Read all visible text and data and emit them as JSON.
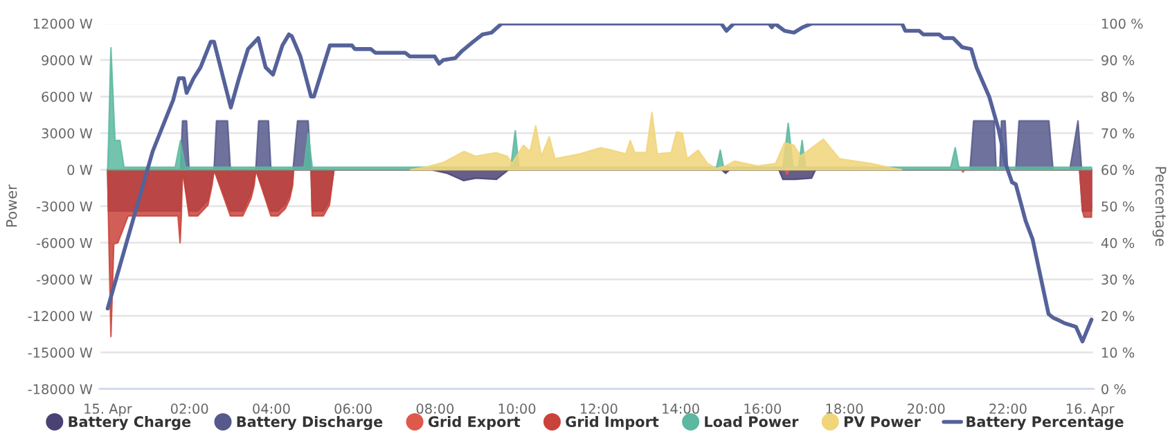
{
  "chart_data": {
    "type": "area",
    "ylabel": "Power",
    "y2label": "Percentage",
    "xlim": [
      -0.2,
      24.1
    ],
    "xticks": [
      {
        "value": 0,
        "label": "15. Apr"
      },
      {
        "value": 2,
        "label": "02:00"
      },
      {
        "value": 4,
        "label": "04:00"
      },
      {
        "value": 6,
        "label": "06:00"
      },
      {
        "value": 8,
        "label": "08:00"
      },
      {
        "value": 10,
        "label": "10:00"
      },
      {
        "value": 12,
        "label": "12:00"
      },
      {
        "value": 14,
        "label": "14:00"
      },
      {
        "value": 16,
        "label": "16:00"
      },
      {
        "value": 18,
        "label": "18:00"
      },
      {
        "value": 20,
        "label": "20:00"
      },
      {
        "value": 22,
        "label": "22:00"
      },
      {
        "value": 24,
        "label": "16. Apr"
      }
    ],
    "ylim": [
      -18000,
      12000
    ],
    "yticks": [
      {
        "value": -18000,
        "label": "-18000 W"
      },
      {
        "value": -15000,
        "label": "-15000 W"
      },
      {
        "value": -12000,
        "label": "-12000 W"
      },
      {
        "value": -9000,
        "label": "-9000 W"
      },
      {
        "value": -6000,
        "label": "-6000 W"
      },
      {
        "value": -3000,
        "label": "-3000 W"
      },
      {
        "value": 0,
        "label": "0 W"
      },
      {
        "value": 3000,
        "label": "3000 W"
      },
      {
        "value": 6000,
        "label": "6000 W"
      },
      {
        "value": 9000,
        "label": "9000 W"
      },
      {
        "value": 12000,
        "label": "12000 W"
      }
    ],
    "y2lim": [
      0,
      100
    ],
    "y2ticks": [
      {
        "value": 0,
        "label": "0 %"
      },
      {
        "value": 10,
        "label": "10 %"
      },
      {
        "value": 20,
        "label": "20 %"
      },
      {
        "value": 30,
        "label": "30 %"
      },
      {
        "value": 40,
        "label": "40 %"
      },
      {
        "value": 50,
        "label": "50 %"
      },
      {
        "value": 60,
        "label": "60 %"
      },
      {
        "value": 70,
        "label": "70 %"
      },
      {
        "value": 80,
        "label": "80 %"
      },
      {
        "value": 90,
        "label": "90 %"
      },
      {
        "value": 100,
        "label": "100 %"
      }
    ],
    "grid": "y",
    "legend": "bottom",
    "marker": "none",
    "line_style": "solid",
    "series": [
      {
        "name": "Battery Charge",
        "color": "#4a4274",
        "x": [
          0,
          0.02,
          1.78,
          1.83,
          1.99,
          2.2,
          2.45,
          2.55,
          2.6,
          3.0,
          3.3,
          3.5,
          3.58,
          3.62,
          3.99,
          4.16,
          4.34,
          4.45,
          4.52,
          4.54,
          4.97,
          5.0,
          5.27,
          5.42,
          5.53,
          7.9,
          8.3,
          8.7,
          9.0,
          9.5,
          9.8,
          15.0,
          15.1,
          15.2,
          16.4,
          16.5,
          16.8,
          17.2,
          17.3,
          23.75,
          23.82,
          24.04
        ],
        "values": [
          0,
          -3400,
          -3400,
          0,
          -3400,
          -3400,
          -2500,
          -1000,
          0,
          -3400,
          -3400,
          -2000,
          -1000,
          0,
          -3400,
          -3400,
          -2800,
          -2000,
          -1000,
          0,
          0,
          -3400,
          -3400,
          -2500,
          0,
          0,
          -300,
          -900,
          -700,
          -800,
          0,
          0,
          -300,
          0,
          0,
          -800,
          -800,
          -700,
          0,
          0,
          -3400,
          -3400
        ]
      },
      {
        "name": "Battery Discharge",
        "color": "#56598c",
        "x": [
          0,
          1.78,
          1.83,
          1.93,
          1.99,
          2.6,
          2.66,
          2.93,
          3.0,
          3.62,
          3.69,
          3.93,
          3.99,
          4.53,
          4.64,
          4.9,
          4.97,
          21.07,
          21.16,
          21.66,
          21.71,
          21.8,
          21.84,
          21.93,
          21.99,
          22.19,
          22.27,
          23.0,
          23.1,
          23.51,
          23.71,
          23.8,
          24.04
        ],
        "values": [
          0,
          0,
          4000,
          4000,
          0,
          0,
          4000,
          4000,
          0,
          0,
          4000,
          4000,
          0,
          0,
          4000,
          4000,
          0,
          0,
          4000,
          4000,
          0,
          0,
          4000,
          4000,
          0,
          0,
          4000,
          4000,
          0,
          0,
          4000,
          0,
          0
        ]
      },
      {
        "name": "Grid Export",
        "color": "#e0584c",
        "x": [
          0,
          16.55,
          16.6,
          16.65,
          20.85,
          20.9,
          20.95,
          24.04
        ],
        "values": [
          0,
          0,
          -400,
          0,
          0,
          -200,
          0,
          0
        ]
      },
      {
        "name": "Grid Import",
        "color": "#c9433a",
        "x": [
          0,
          0.02,
          0.08,
          0.15,
          0.25,
          0.5,
          1.72,
          1.77,
          1.8,
          1.83,
          1.99,
          2.2,
          2.45,
          2.55,
          2.6,
          3.0,
          3.3,
          3.5,
          3.58,
          3.62,
          3.99,
          4.16,
          4.34,
          4.45,
          4.52,
          4.54,
          4.97,
          5.0,
          5.27,
          5.42,
          5.53,
          23.75,
          23.82,
          23.86,
          24.04
        ],
        "values": [
          0,
          -3900,
          -13700,
          -6100,
          -6000,
          -3800,
          -3800,
          -6000,
          -3800,
          0,
          -3800,
          -3800,
          -2900,
          -1300,
          0,
          -3800,
          -3800,
          -2400,
          -1300,
          0,
          -3800,
          -3800,
          -3200,
          -2400,
          -1300,
          0,
          0,
          -3800,
          -3800,
          -2900,
          0,
          0,
          -3400,
          -3900,
          -3900
        ]
      },
      {
        "name": "Load Power",
        "color": "#5cb8a0",
        "x": [
          0,
          0.02,
          0.08,
          0.18,
          0.3,
          0.4,
          1.65,
          1.78,
          1.9,
          4.8,
          4.9,
          5.0,
          9.85,
          9.96,
          10.05,
          14.88,
          14.97,
          15.05,
          16.5,
          16.63,
          16.75,
          16.88,
          16.97,
          17.05,
          20.6,
          20.71,
          20.8,
          24.04
        ],
        "values": [
          0,
          2000,
          10000,
          2400,
          2400,
          200,
          200,
          2400,
          200,
          200,
          3000,
          200,
          200,
          3200,
          200,
          200,
          1600,
          200,
          200,
          3800,
          200,
          200,
          2400,
          200,
          200,
          1800,
          200,
          200
        ]
      },
      {
        "name": "PV Power",
        "color": "#f1d57a",
        "x": [
          7.4,
          7.77,
          8.21,
          8.71,
          8.99,
          9.49,
          9.77,
          9.88,
          10.16,
          10.32,
          10.46,
          10.6,
          10.79,
          10.93,
          11.54,
          12.04,
          12.32,
          12.66,
          12.77,
          12.88,
          13.16,
          13.3,
          13.43,
          13.77,
          13.9,
          14.04,
          14.16,
          14.43,
          14.66,
          14.88,
          15.1,
          15.32,
          15.88,
          16.32,
          16.54,
          16.77,
          16.93,
          17.49,
          17.88,
          18.66,
          19.21,
          19.4
        ],
        "values": [
          0,
          200,
          600,
          1500,
          1100,
          1400,
          1100,
          500,
          2000,
          1500,
          3600,
          1100,
          2700,
          900,
          1300,
          1800,
          1600,
          1300,
          2400,
          1400,
          1400,
          4700,
          1300,
          1400,
          3100,
          3000,
          900,
          1600,
          500,
          100,
          300,
          700,
          300,
          500,
          2200,
          2000,
          1100,
          2500,
          900,
          500,
          100,
          0
        ]
      },
      {
        "name": "Battery Percentage",
        "type": "line",
        "axis": "y2",
        "color": "#55629a",
        "x": [
          0,
          1.1,
          1.6,
          1.74,
          1.86,
          1.93,
          2.1,
          2.27,
          2.52,
          2.6,
          2.77,
          3.01,
          3.21,
          3.43,
          3.68,
          3.86,
          4.04,
          4.27,
          4.43,
          4.5,
          4.71,
          4.97,
          5.04,
          5.43,
          5.97,
          6.04,
          6.43,
          6.54,
          7.27,
          7.38,
          7.77,
          7.99,
          8.1,
          8.2,
          8.49,
          8.66,
          8.93,
          9.16,
          9.38,
          9.63,
          14.99,
          15.12,
          15.3,
          16.16,
          16.23,
          16.3,
          16.54,
          16.77,
          16.99,
          17.21,
          19.41,
          19.49,
          19.83,
          19.93,
          20.32,
          20.43,
          20.66,
          20.88,
          21.1,
          21.23,
          21.54,
          21.77,
          21.96,
          22.1,
          22.19,
          22.43,
          22.6,
          22.99,
          23.1,
          23.2,
          23.38,
          23.66,
          23.82,
          24.04
        ],
        "values": [
          22,
          65,
          79,
          85,
          85,
          81,
          85,
          88,
          95,
          95,
          87.5,
          77,
          85,
          93,
          96,
          88,
          86,
          94,
          97,
          96.5,
          91,
          80,
          80,
          94,
          94,
          93,
          93,
          92,
          92,
          91,
          91,
          91,
          89,
          90,
          90.5,
          92.5,
          95,
          97,
          97.5,
          100,
          100,
          98,
          100,
          100,
          99,
          100,
          98,
          97.5,
          99,
          100,
          100,
          98,
          98,
          97,
          97,
          96,
          96,
          93.5,
          93,
          88,
          80,
          71,
          61,
          56.5,
          56,
          46,
          41,
          20.5,
          19.5,
          19,
          18,
          17,
          13,
          19
        ]
      }
    ]
  }
}
